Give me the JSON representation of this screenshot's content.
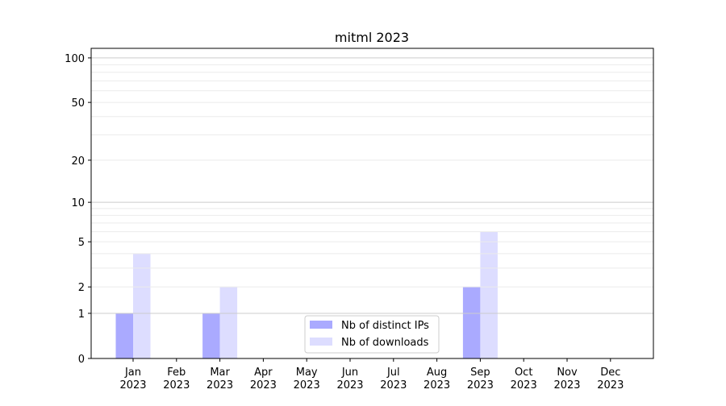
{
  "chart_data": {
    "type": "bar",
    "title": "mitml 2023",
    "categories": [
      "Jan\n2023",
      "Feb\n2023",
      "Mar\n2023",
      "Apr\n2023",
      "May\n2023",
      "Jun\n2023",
      "Jul\n2023",
      "Aug\n2023",
      "Sep\n2023",
      "Oct\n2023",
      "Nov\n2023",
      "Dec\n2023"
    ],
    "series": [
      {
        "name": "Nb of distinct IPs",
        "color": "#aaaaff",
        "values": [
          1,
          0,
          1,
          0,
          0,
          0,
          0,
          0,
          2,
          0,
          0,
          0
        ]
      },
      {
        "name": "Nb of downloads",
        "color": "#ddddff",
        "values": [
          4,
          0,
          2,
          0,
          0,
          0,
          0,
          0,
          6,
          0,
          0,
          0
        ]
      }
    ],
    "yscale": "log(1+y)",
    "ylim": [
      0,
      116
    ],
    "yticks": [
      0,
      1,
      2,
      5,
      10,
      20,
      50,
      100
    ],
    "grid": true,
    "legend": "lower-center",
    "xlabel": "",
    "ylabel": ""
  }
}
